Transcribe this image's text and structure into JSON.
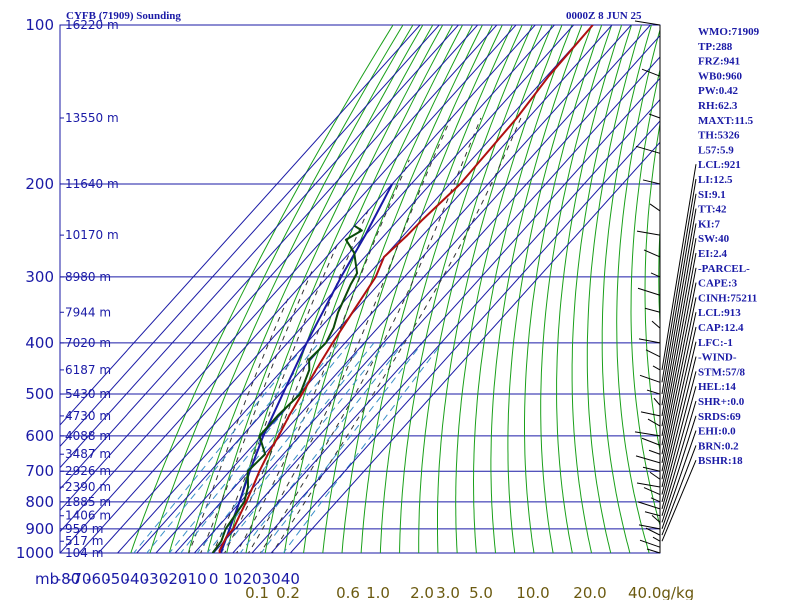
{
  "header": {
    "title": "CYFB (71909) Sounding",
    "time": "0000Z  8 JUN 25"
  },
  "colors": {
    "grid": "#1a1aa6",
    "dry_adiabat": "#1aa01a",
    "moist_adiabat": "#333333",
    "mixing_ratio": "#3a8fc8",
    "temperature": "#b01010",
    "dewpoint": "#0a4a0a",
    "parcel": "#1a1aa6",
    "wind": "#000000"
  },
  "chart_data": {
    "type": "skew-t",
    "pressure_axis": {
      "label": "mb",
      "ticks": [
        100,
        200,
        300,
        400,
        500,
        600,
        700,
        800,
        900,
        1000
      ],
      "range": [
        100,
        1050
      ],
      "scale": "log"
    },
    "temperature_axis": {
      "ticks": [
        -80,
        -70,
        -60,
        -50,
        -40,
        -30,
        -20,
        -10,
        0,
        10,
        20,
        30,
        40
      ],
      "range_at_surface": [
        -80,
        40
      ]
    },
    "mixing_ratio_axis": {
      "unit": "g/kg",
      "ticks": [
        "0.1",
        "0.2",
        "0.6",
        "1.0",
        "2.0",
        "3.0",
        "5.0",
        "10.0",
        "20.0",
        "40.0"
      ]
    },
    "height_labels": [
      {
        "p": 100,
        "text": "16220 m"
      },
      {
        "p": 150,
        "text": "13550 m"
      },
      {
        "p": 200,
        "text": "11640 m"
      },
      {
        "p": 250,
        "text": "10170 m"
      },
      {
        "p": 300,
        "text": "8980 m"
      },
      {
        "p": 350,
        "text": "7944 m"
      },
      {
        "p": 400,
        "text": "7020 m"
      },
      {
        "p": 450,
        "text": "6187 m"
      },
      {
        "p": 500,
        "text": "5430 m"
      },
      {
        "p": 550,
        "text": "4730 m"
      },
      {
        "p": 600,
        "text": "4088 m"
      },
      {
        "p": 650,
        "text": "3487 m"
      },
      {
        "p": 700,
        "text": "2926 m"
      },
      {
        "p": 750,
        "text": "2390 m"
      },
      {
        "p": 800,
        "text": "1885 m"
      },
      {
        "p": 850,
        "text": "1406 m"
      },
      {
        "p": 900,
        "text": "950 m"
      },
      {
        "p": 950,
        "text": "517 m"
      },
      {
        "p": 1000,
        "text": "104 m"
      }
    ],
    "temperature": [
      [
        1010,
        4.4
      ],
      [
        990,
        2.0
      ],
      [
        930,
        -1.0
      ],
      [
        900,
        -1.0
      ],
      [
        850,
        -4.0
      ],
      [
        800,
        -7.0
      ],
      [
        750,
        -10.5
      ],
      [
        700,
        -14.5
      ],
      [
        650,
        -18.0
      ],
      [
        600,
        -21.0
      ],
      [
        550,
        -25.0
      ],
      [
        500,
        -28.5
      ],
      [
        450,
        -32.5
      ],
      [
        400,
        -36.5
      ],
      [
        350,
        -40.5
      ],
      [
        300,
        -45.0
      ],
      [
        275,
        -50.0
      ],
      [
        250,
        -48.0
      ],
      [
        235,
        -47.5
      ],
      [
        200,
        -44.5
      ],
      [
        150,
        -46.0
      ],
      [
        125,
        -49.0
      ],
      [
        100,
        -50.0
      ]
    ],
    "dewpoint": [
      [
        1000,
        -0.5
      ],
      [
        950,
        -1.5
      ],
      [
        900,
        -5.0
      ],
      [
        850,
        -6.5
      ],
      [
        800,
        -8.0
      ],
      [
        750,
        -13.0
      ],
      [
        700,
        -20.5
      ],
      [
        650,
        -19.5
      ],
      [
        600,
        -31.0
      ],
      [
        550,
        -31.0
      ],
      [
        500,
        -29.5
      ],
      [
        450,
        -36.0
      ],
      [
        430,
        -41.0
      ],
      [
        400,
        -40.0
      ],
      [
        375,
        -43.0
      ],
      [
        350,
        -48.0
      ],
      [
        310,
        -54.5
      ],
      [
        295,
        -56.5
      ],
      [
        270,
        -67.5
      ],
      [
        255,
        -78.0
      ],
      [
        245,
        -74.0
      ],
      [
        240,
        -80.0
      ]
    ],
    "parcel": [
      [
        1010,
        4.4
      ],
      [
        900,
        -3.0
      ],
      [
        800,
        -10.5
      ],
      [
        700,
        -19.5
      ],
      [
        600,
        -29.0
      ],
      [
        500,
        -38.5
      ],
      [
        400,
        -50.0
      ],
      [
        300,
        -63.0
      ],
      [
        250,
        -70.0
      ],
      [
        200,
        -80.0
      ]
    ],
    "indices": [
      "WMO:71909",
      "TP:288",
      "FRZ:941",
      "WB0:960",
      "PW:0.42",
      "RH:62.3",
      "MAXT:11.5",
      "TH:5326",
      "L57:5.9",
      "LCL:921",
      "LI:12.5",
      "SI:9.1",
      "TT:42",
      "KI:7",
      "SW:40",
      "EI:2.4",
      "-PARCEL-",
      "CAPE:3",
      "CINH:75211",
      "LCL:913",
      "CAP:12.4",
      "LFC:-1",
      "-WIND-",
      "STM:57/8",
      "HEL:14",
      "SHR+:0.0",
      "SRDS:69",
      "EHI:0.0",
      "BRN:0.2",
      "BSHR:18"
    ],
    "wind_barb_pressures": [
      100,
      125,
      150,
      175,
      200,
      225,
      250,
      275,
      300,
      325,
      350,
      375,
      400,
      425,
      450,
      475,
      500,
      525,
      550,
      575,
      600,
      625,
      650,
      675,
      700,
      725,
      750,
      775,
      800,
      825,
      850,
      875,
      900,
      925,
      950,
      975,
      1000
    ]
  }
}
